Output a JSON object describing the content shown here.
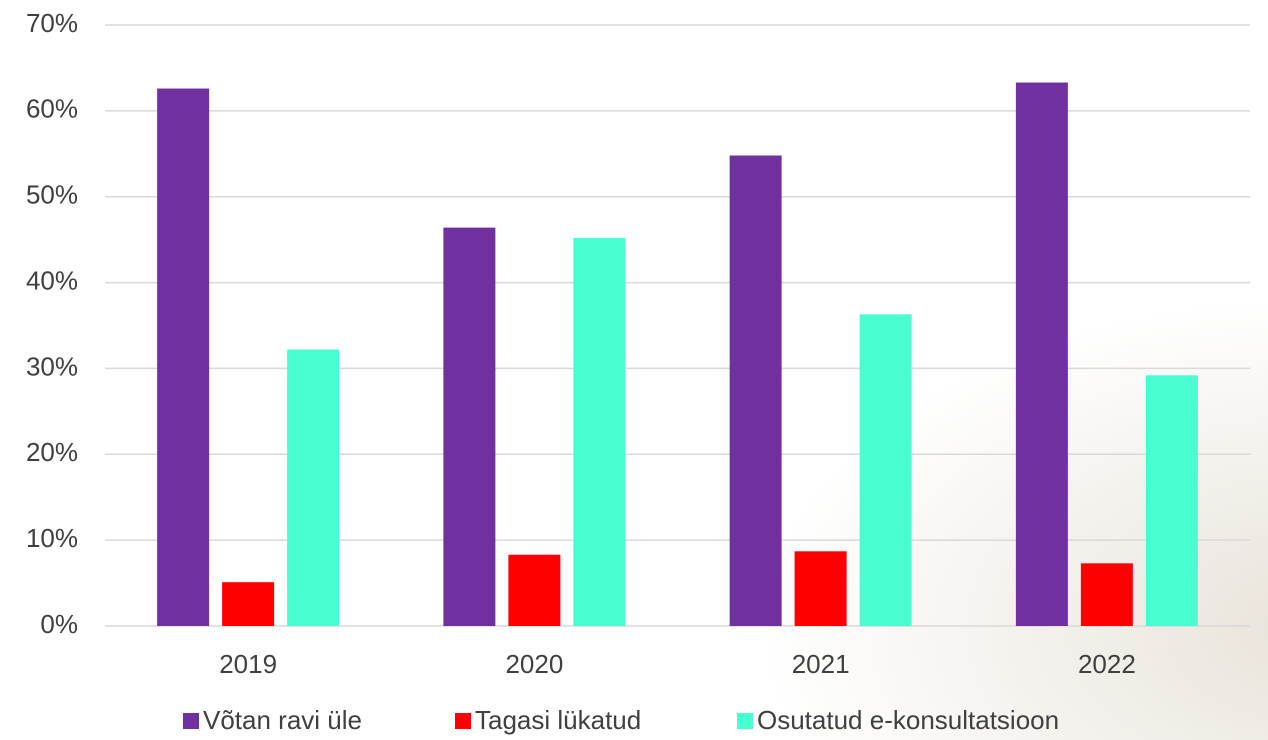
{
  "chart_data": {
    "type": "bar",
    "categories": [
      "2019",
      "2020",
      "2021",
      "2022"
    ],
    "series": [
      {
        "name": "Võtan ravi üle",
        "color": "#7030a0",
        "values": [
          62.6,
          46.4,
          54.8,
          63.3
        ]
      },
      {
        "name": "Tagasi lükatud",
        "color": "#ff0000",
        "values": [
          5.1,
          8.3,
          8.7,
          7.3
        ]
      },
      {
        "name": "Osutatud e-konsultatsioon",
        "color": "#47ffd1",
        "values": [
          32.2,
          45.2,
          36.3,
          29.2
        ]
      }
    ],
    "ylim": [
      0,
      70
    ],
    "yticks": [
      {
        "value": 0,
        "label": "0%"
      },
      {
        "value": 10,
        "label": "10%"
      },
      {
        "value": 20,
        "label": "20%"
      },
      {
        "value": 30,
        "label": "30%"
      },
      {
        "value": 40,
        "label": "40%"
      },
      {
        "value": 50,
        "label": "50%"
      },
      {
        "value": 60,
        "label": "60%"
      },
      {
        "value": 70,
        "label": "70%"
      }
    ],
    "grid": true,
    "legend": "bottom"
  }
}
